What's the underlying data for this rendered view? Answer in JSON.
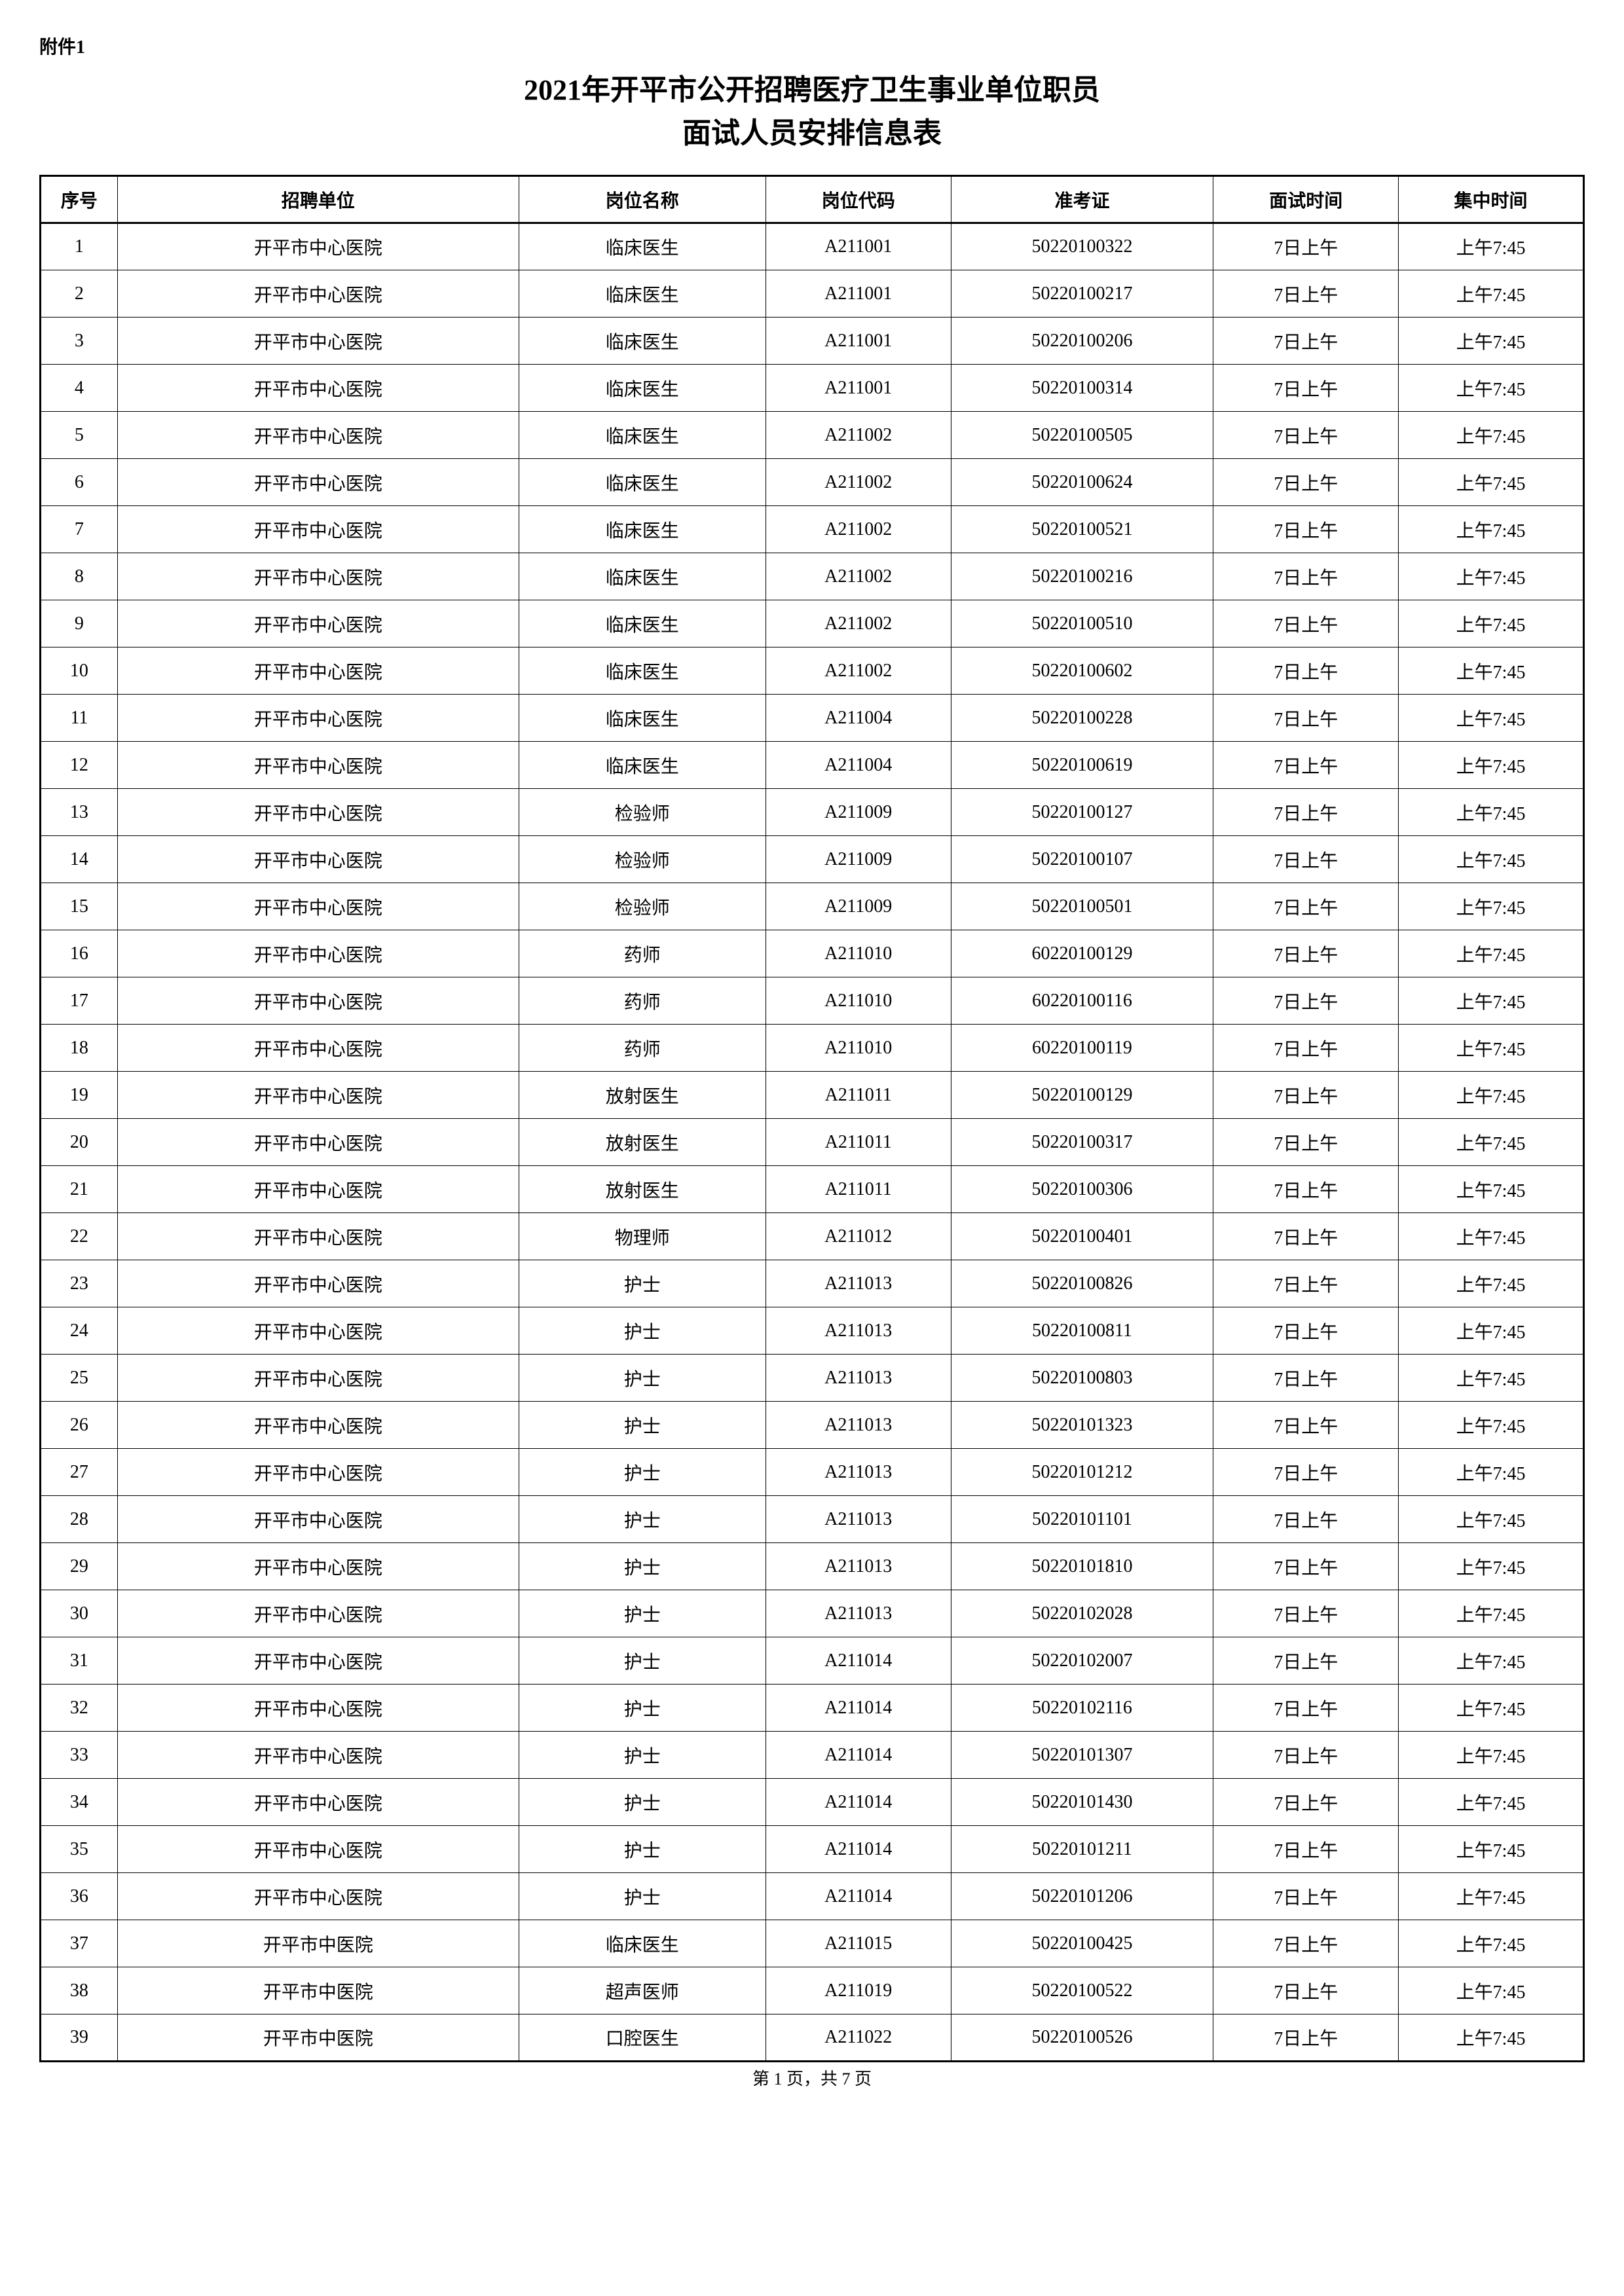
{
  "attachment_label": "附件1",
  "title_line1": "2021年开平市公开招聘医疗卫生事业单位职员",
  "title_line2": "面试人员安排信息表",
  "columns": {
    "seq": "序号",
    "unit": "招聘单位",
    "position": "岗位名称",
    "code": "岗位代码",
    "ticket": "准考证",
    "interview_time": "面试时间",
    "gather_time": "集中时间"
  },
  "rows": [
    {
      "seq": "1",
      "unit": "开平市中心医院",
      "position": "临床医生",
      "code": "A211001",
      "ticket": "50220100322",
      "interview": "7日上午",
      "gather": "上午7:45"
    },
    {
      "seq": "2",
      "unit": "开平市中心医院",
      "position": "临床医生",
      "code": "A211001",
      "ticket": "50220100217",
      "interview": "7日上午",
      "gather": "上午7:45"
    },
    {
      "seq": "3",
      "unit": "开平市中心医院",
      "position": "临床医生",
      "code": "A211001",
      "ticket": "50220100206",
      "interview": "7日上午",
      "gather": "上午7:45"
    },
    {
      "seq": "4",
      "unit": "开平市中心医院",
      "position": "临床医生",
      "code": "A211001",
      "ticket": "50220100314",
      "interview": "7日上午",
      "gather": "上午7:45"
    },
    {
      "seq": "5",
      "unit": "开平市中心医院",
      "position": "临床医生",
      "code": "A211002",
      "ticket": "50220100505",
      "interview": "7日上午",
      "gather": "上午7:45"
    },
    {
      "seq": "6",
      "unit": "开平市中心医院",
      "position": "临床医生",
      "code": "A211002",
      "ticket": "50220100624",
      "interview": "7日上午",
      "gather": "上午7:45"
    },
    {
      "seq": "7",
      "unit": "开平市中心医院",
      "position": "临床医生",
      "code": "A211002",
      "ticket": "50220100521",
      "interview": "7日上午",
      "gather": "上午7:45"
    },
    {
      "seq": "8",
      "unit": "开平市中心医院",
      "position": "临床医生",
      "code": "A211002",
      "ticket": "50220100216",
      "interview": "7日上午",
      "gather": "上午7:45"
    },
    {
      "seq": "9",
      "unit": "开平市中心医院",
      "position": "临床医生",
      "code": "A211002",
      "ticket": "50220100510",
      "interview": "7日上午",
      "gather": "上午7:45"
    },
    {
      "seq": "10",
      "unit": "开平市中心医院",
      "position": "临床医生",
      "code": "A211002",
      "ticket": "50220100602",
      "interview": "7日上午",
      "gather": "上午7:45"
    },
    {
      "seq": "11",
      "unit": "开平市中心医院",
      "position": "临床医生",
      "code": "A211004",
      "ticket": "50220100228",
      "interview": "7日上午",
      "gather": "上午7:45"
    },
    {
      "seq": "12",
      "unit": "开平市中心医院",
      "position": "临床医生",
      "code": "A211004",
      "ticket": "50220100619",
      "interview": "7日上午",
      "gather": "上午7:45"
    },
    {
      "seq": "13",
      "unit": "开平市中心医院",
      "position": "检验师",
      "code": "A211009",
      "ticket": "50220100127",
      "interview": "7日上午",
      "gather": "上午7:45"
    },
    {
      "seq": "14",
      "unit": "开平市中心医院",
      "position": "检验师",
      "code": "A211009",
      "ticket": "50220100107",
      "interview": "7日上午",
      "gather": "上午7:45"
    },
    {
      "seq": "15",
      "unit": "开平市中心医院",
      "position": "检验师",
      "code": "A211009",
      "ticket": "50220100501",
      "interview": "7日上午",
      "gather": "上午7:45"
    },
    {
      "seq": "16",
      "unit": "开平市中心医院",
      "position": "药师",
      "code": "A211010",
      "ticket": "60220100129",
      "interview": "7日上午",
      "gather": "上午7:45"
    },
    {
      "seq": "17",
      "unit": "开平市中心医院",
      "position": "药师",
      "code": "A211010",
      "ticket": "60220100116",
      "interview": "7日上午",
      "gather": "上午7:45"
    },
    {
      "seq": "18",
      "unit": "开平市中心医院",
      "position": "药师",
      "code": "A211010",
      "ticket": "60220100119",
      "interview": "7日上午",
      "gather": "上午7:45"
    },
    {
      "seq": "19",
      "unit": "开平市中心医院",
      "position": "放射医生",
      "code": "A211011",
      "ticket": "50220100129",
      "interview": "7日上午",
      "gather": "上午7:45"
    },
    {
      "seq": "20",
      "unit": "开平市中心医院",
      "position": "放射医生",
      "code": "A211011",
      "ticket": "50220100317",
      "interview": "7日上午",
      "gather": "上午7:45"
    },
    {
      "seq": "21",
      "unit": "开平市中心医院",
      "position": "放射医生",
      "code": "A211011",
      "ticket": "50220100306",
      "interview": "7日上午",
      "gather": "上午7:45"
    },
    {
      "seq": "22",
      "unit": "开平市中心医院",
      "position": "物理师",
      "code": "A211012",
      "ticket": "50220100401",
      "interview": "7日上午",
      "gather": "上午7:45"
    },
    {
      "seq": "23",
      "unit": "开平市中心医院",
      "position": "护士",
      "code": "A211013",
      "ticket": "50220100826",
      "interview": "7日上午",
      "gather": "上午7:45"
    },
    {
      "seq": "24",
      "unit": "开平市中心医院",
      "position": "护士",
      "code": "A211013",
      "ticket": "50220100811",
      "interview": "7日上午",
      "gather": "上午7:45"
    },
    {
      "seq": "25",
      "unit": "开平市中心医院",
      "position": "护士",
      "code": "A211013",
      "ticket": "50220100803",
      "interview": "7日上午",
      "gather": "上午7:45"
    },
    {
      "seq": "26",
      "unit": "开平市中心医院",
      "position": "护士",
      "code": "A211013",
      "ticket": "50220101323",
      "interview": "7日上午",
      "gather": "上午7:45"
    },
    {
      "seq": "27",
      "unit": "开平市中心医院",
      "position": "护士",
      "code": "A211013",
      "ticket": "50220101212",
      "interview": "7日上午",
      "gather": "上午7:45"
    },
    {
      "seq": "28",
      "unit": "开平市中心医院",
      "position": "护士",
      "code": "A211013",
      "ticket": "50220101101",
      "interview": "7日上午",
      "gather": "上午7:45"
    },
    {
      "seq": "29",
      "unit": "开平市中心医院",
      "position": "护士",
      "code": "A211013",
      "ticket": "50220101810",
      "interview": "7日上午",
      "gather": "上午7:45"
    },
    {
      "seq": "30",
      "unit": "开平市中心医院",
      "position": "护士",
      "code": "A211013",
      "ticket": "50220102028",
      "interview": "7日上午",
      "gather": "上午7:45"
    },
    {
      "seq": "31",
      "unit": "开平市中心医院",
      "position": "护士",
      "code": "A211014",
      "ticket": "50220102007",
      "interview": "7日上午",
      "gather": "上午7:45"
    },
    {
      "seq": "32",
      "unit": "开平市中心医院",
      "position": "护士",
      "code": "A211014",
      "ticket": "50220102116",
      "interview": "7日上午",
      "gather": "上午7:45"
    },
    {
      "seq": "33",
      "unit": "开平市中心医院",
      "position": "护士",
      "code": "A211014",
      "ticket": "50220101307",
      "interview": "7日上午",
      "gather": "上午7:45"
    },
    {
      "seq": "34",
      "unit": "开平市中心医院",
      "position": "护士",
      "code": "A211014",
      "ticket": "50220101430",
      "interview": "7日上午",
      "gather": "上午7:45"
    },
    {
      "seq": "35",
      "unit": "开平市中心医院",
      "position": "护士",
      "code": "A211014",
      "ticket": "50220101211",
      "interview": "7日上午",
      "gather": "上午7:45"
    },
    {
      "seq": "36",
      "unit": "开平市中心医院",
      "position": "护士",
      "code": "A211014",
      "ticket": "50220101206",
      "interview": "7日上午",
      "gather": "上午7:45"
    },
    {
      "seq": "37",
      "unit": "开平市中医院",
      "position": "临床医生",
      "code": "A211015",
      "ticket": "50220100425",
      "interview": "7日上午",
      "gather": "上午7:45"
    },
    {
      "seq": "38",
      "unit": "开平市中医院",
      "position": "超声医师",
      "code": "A211019",
      "ticket": "50220100522",
      "interview": "7日上午",
      "gather": "上午7:45"
    },
    {
      "seq": "39",
      "unit": "开平市中医院",
      "position": "口腔医生",
      "code": "A211022",
      "ticket": "50220100526",
      "interview": "7日上午",
      "gather": "上午7:45"
    }
  ],
  "footer": "第 1 页，共 7 页"
}
